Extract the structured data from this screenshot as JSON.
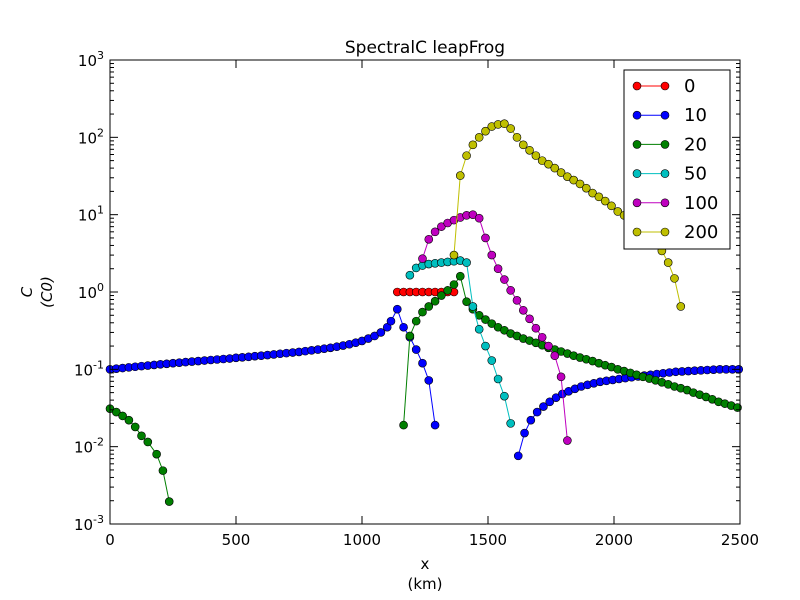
{
  "chart_data": {
    "type": "line",
    "title": "SpectralC leapFrog",
    "xlabel": "x",
    "xlabel_unit": "(km)",
    "ylabel": "C",
    "ylabel_unit": "(C0)",
    "xlim": [
      0,
      2500
    ],
    "ylim": [
      0.001,
      1000
    ],
    "yscale": "log",
    "xticks": [
      0,
      500,
      1000,
      1500,
      2000,
      2500
    ],
    "yticks": [
      {
        "base": "10",
        "exp": "-3",
        "value": 0.001
      },
      {
        "base": "10",
        "exp": "-2",
        "value": 0.01
      },
      {
        "base": "10",
        "exp": "-1",
        "value": 0.1
      },
      {
        "base": "10",
        "exp": "0",
        "value": 1
      },
      {
        "base": "10",
        "exp": "1",
        "value": 10
      },
      {
        "base": "10",
        "exp": "2",
        "value": 100
      },
      {
        "base": "10",
        "exp": "3",
        "value": 1000
      }
    ],
    "grid": false,
    "legend_position": "top-right",
    "series": [
      {
        "name": "0",
        "color": "#ff0000",
        "points": [
          [
            1140,
            1.0
          ],
          [
            1165,
            1.0
          ],
          [
            1190,
            1.0
          ],
          [
            1215,
            1.0
          ],
          [
            1240,
            1.0
          ],
          [
            1265,
            1.0
          ],
          [
            1290,
            1.0
          ],
          [
            1315,
            1.0
          ],
          [
            1340,
            1.0
          ],
          [
            1365,
            1.0
          ]
        ]
      },
      {
        "name": "10",
        "color": "#0000ff",
        "points": [
          [
            0,
            0.1
          ],
          [
            25,
            0.102
          ],
          [
            50,
            0.104
          ],
          [
            75,
            0.106
          ],
          [
            100,
            0.108
          ],
          [
            125,
            0.11
          ],
          [
            150,
            0.112
          ],
          [
            175,
            0.114
          ],
          [
            200,
            0.116
          ],
          [
            225,
            0.118
          ],
          [
            250,
            0.12
          ],
          [
            275,
            0.122
          ],
          [
            300,
            0.124
          ],
          [
            325,
            0.126
          ],
          [
            350,
            0.128
          ],
          [
            375,
            0.13
          ],
          [
            400,
            0.132
          ],
          [
            425,
            0.134
          ],
          [
            450,
            0.136
          ],
          [
            475,
            0.138
          ],
          [
            500,
            0.141
          ],
          [
            525,
            0.143
          ],
          [
            550,
            0.145
          ],
          [
            575,
            0.148
          ],
          [
            600,
            0.15
          ],
          [
            625,
            0.153
          ],
          [
            650,
            0.156
          ],
          [
            675,
            0.159
          ],
          [
            700,
            0.162
          ],
          [
            725,
            0.165
          ],
          [
            750,
            0.168
          ],
          [
            775,
            0.172
          ],
          [
            800,
            0.176
          ],
          [
            825,
            0.18
          ],
          [
            850,
            0.185
          ],
          [
            875,
            0.19
          ],
          [
            900,
            0.196
          ],
          [
            925,
            0.203
          ],
          [
            950,
            0.211
          ],
          [
            975,
            0.221
          ],
          [
            1000,
            0.233
          ],
          [
            1025,
            0.25
          ],
          [
            1050,
            0.27
          ],
          [
            1075,
            0.3
          ],
          [
            1100,
            0.35
          ],
          [
            1115,
            0.42
          ],
          [
            1140,
            0.6
          ],
          [
            1165,
            0.35
          ],
          [
            1190,
            0.26
          ],
          [
            1215,
            0.18
          ],
          [
            1240,
            0.12
          ],
          [
            1265,
            0.072
          ],
          [
            1290,
            0.019
          ],
          [
            1620,
            0.0076
          ],
          [
            1645,
            0.015
          ],
          [
            1670,
            0.022
          ],
          [
            1695,
            0.028
          ],
          [
            1720,
            0.033
          ],
          [
            1745,
            0.038
          ],
          [
            1770,
            0.043
          ],
          [
            1795,
            0.048
          ],
          [
            1820,
            0.052
          ],
          [
            1845,
            0.056
          ],
          [
            1870,
            0.06
          ],
          [
            1895,
            0.063
          ],
          [
            1920,
            0.066
          ],
          [
            1945,
            0.069
          ],
          [
            1970,
            0.071
          ],
          [
            1995,
            0.073
          ],
          [
            2020,
            0.075
          ],
          [
            2045,
            0.077
          ],
          [
            2070,
            0.079
          ],
          [
            2095,
            0.081
          ],
          [
            2120,
            0.083
          ],
          [
            2145,
            0.085
          ],
          [
            2170,
            0.087
          ],
          [
            2195,
            0.089
          ],
          [
            2220,
            0.091
          ],
          [
            2245,
            0.093
          ],
          [
            2270,
            0.094
          ],
          [
            2295,
            0.095
          ],
          [
            2320,
            0.096
          ],
          [
            2345,
            0.097
          ],
          [
            2370,
            0.098
          ],
          [
            2395,
            0.099
          ],
          [
            2420,
            0.1
          ],
          [
            2445,
            0.1
          ],
          [
            2470,
            0.1
          ],
          [
            2495,
            0.1
          ]
        ]
      },
      {
        "name": "20",
        "color": "#007f00",
        "points": [
          [
            0,
            0.031
          ],
          [
            25,
            0.028
          ],
          [
            50,
            0.025
          ],
          [
            75,
            0.022
          ],
          [
            100,
            0.018
          ],
          [
            125,
            0.0138
          ],
          [
            150,
            0.0115
          ],
          [
            185,
            0.008
          ],
          [
            210,
            0.0049
          ],
          [
            235,
            0.00195
          ],
          [
            1165,
            0.019
          ],
          [
            1190,
            0.27
          ],
          [
            1215,
            0.42
          ],
          [
            1240,
            0.55
          ],
          [
            1265,
            0.65
          ],
          [
            1290,
            0.76
          ],
          [
            1315,
            0.9
          ],
          [
            1340,
            1.05
          ],
          [
            1365,
            1.25
          ],
          [
            1390,
            1.6
          ],
          [
            1415,
            0.75
          ],
          [
            1440,
            0.6
          ],
          [
            1465,
            0.5
          ],
          [
            1490,
            0.44
          ],
          [
            1515,
            0.39
          ],
          [
            1540,
            0.35
          ],
          [
            1565,
            0.32
          ],
          [
            1590,
            0.29
          ],
          [
            1615,
            0.27
          ],
          [
            1640,
            0.25
          ],
          [
            1665,
            0.235
          ],
          [
            1690,
            0.22
          ],
          [
            1715,
            0.205
          ],
          [
            1740,
            0.19
          ],
          [
            1765,
            0.18
          ],
          [
            1790,
            0.17
          ],
          [
            1815,
            0.16
          ],
          [
            1840,
            0.15
          ],
          [
            1865,
            0.142
          ],
          [
            1890,
            0.135
          ],
          [
            1915,
            0.128
          ],
          [
            1940,
            0.12
          ],
          [
            1965,
            0.113
          ],
          [
            1990,
            0.107
          ],
          [
            2015,
            0.1
          ],
          [
            2040,
            0.095
          ],
          [
            2065,
            0.09
          ],
          [
            2090,
            0.085
          ],
          [
            2115,
            0.08
          ],
          [
            2140,
            0.076
          ],
          [
            2165,
            0.072
          ],
          [
            2190,
            0.068
          ],
          [
            2215,
            0.064
          ],
          [
            2240,
            0.06
          ],
          [
            2265,
            0.057
          ],
          [
            2290,
            0.054
          ],
          [
            2315,
            0.05
          ],
          [
            2340,
            0.047
          ],
          [
            2365,
            0.044
          ],
          [
            2390,
            0.041
          ],
          [
            2415,
            0.038
          ],
          [
            2440,
            0.036
          ],
          [
            2465,
            0.034
          ],
          [
            2490,
            0.032
          ]
        ]
      },
      {
        "name": "50",
        "color": "#00bfbf",
        "points": [
          [
            1190,
            1.65
          ],
          [
            1215,
            2.05
          ],
          [
            1240,
            2.2
          ],
          [
            1265,
            2.3
          ],
          [
            1290,
            2.35
          ],
          [
            1315,
            2.4
          ],
          [
            1340,
            2.45
          ],
          [
            1365,
            2.5
          ],
          [
            1390,
            2.55
          ],
          [
            1415,
            2.4
          ],
          [
            1440,
            0.65
          ],
          [
            1465,
            0.33
          ],
          [
            1490,
            0.2
          ],
          [
            1515,
            0.13
          ],
          [
            1540,
            0.075
          ],
          [
            1565,
            0.045
          ],
          [
            1590,
            0.02
          ]
        ]
      },
      {
        "name": "100",
        "color": "#bf00bf",
        "points": [
          [
            1240,
            2.7
          ],
          [
            1265,
            4.8
          ],
          [
            1290,
            6.0
          ],
          [
            1315,
            7.0
          ],
          [
            1340,
            7.8
          ],
          [
            1365,
            8.5
          ],
          [
            1390,
            9.2
          ],
          [
            1415,
            9.8
          ],
          [
            1440,
            10.0
          ],
          [
            1465,
            9.0
          ],
          [
            1490,
            5.0
          ],
          [
            1515,
            3.0
          ],
          [
            1540,
            2.0
          ],
          [
            1565,
            1.45
          ],
          [
            1590,
            1.05
          ],
          [
            1615,
            0.78
          ],
          [
            1640,
            0.58
          ],
          [
            1665,
            0.45
          ],
          [
            1690,
            0.34
          ],
          [
            1715,
            0.26
          ],
          [
            1740,
            0.2
          ],
          [
            1765,
            0.15
          ],
          [
            1790,
            0.08
          ],
          [
            1815,
            0.012
          ]
        ]
      },
      {
        "name": "200",
        "color": "#bfbf00",
        "points": [
          [
            1365,
            3.0
          ],
          [
            1390,
            32.0
          ],
          [
            1415,
            58.0
          ],
          [
            1440,
            80.0
          ],
          [
            1465,
            100.0
          ],
          [
            1490,
            120.0
          ],
          [
            1515,
            138.0
          ],
          [
            1540,
            147.0
          ],
          [
            1565,
            150.0
          ],
          [
            1590,
            130.0
          ],
          [
            1615,
            100.0
          ],
          [
            1640,
            80.0
          ],
          [
            1665,
            68.0
          ],
          [
            1690,
            58.0
          ],
          [
            1715,
            50.0
          ],
          [
            1740,
            45.0
          ],
          [
            1765,
            40.0
          ],
          [
            1790,
            35.0
          ],
          [
            1815,
            31.0
          ],
          [
            1840,
            28.0
          ],
          [
            1865,
            25.0
          ],
          [
            1890,
            22.0
          ],
          [
            1915,
            19.0
          ],
          [
            1940,
            17.0
          ],
          [
            1965,
            15.0
          ],
          [
            1990,
            13.0
          ],
          [
            2015,
            11.0
          ],
          [
            2040,
            9.8
          ],
          [
            2065,
            8.5
          ],
          [
            2090,
            7.5
          ],
          [
            2115,
            6.5
          ],
          [
            2140,
            5.5
          ],
          [
            2165,
            4.5
          ],
          [
            2190,
            3.4
          ],
          [
            2215,
            2.4
          ],
          [
            2240,
            1.5
          ],
          [
            2265,
            0.65
          ]
        ]
      }
    ]
  }
}
